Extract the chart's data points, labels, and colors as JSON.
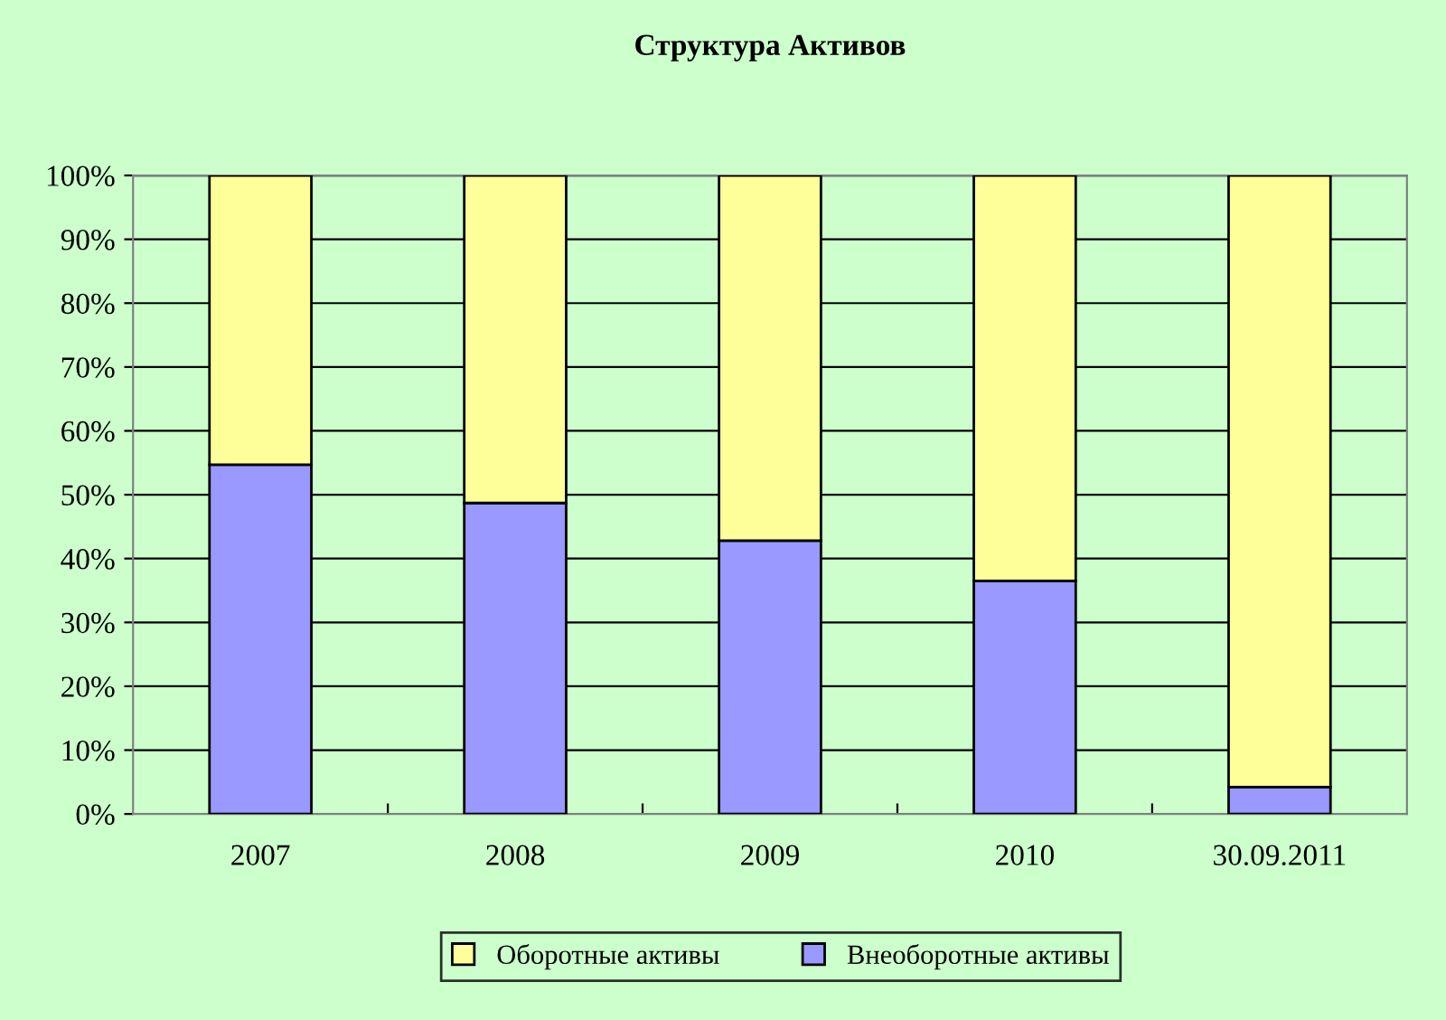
{
  "chart_data": {
    "type": "bar",
    "title": "Структура Активов",
    "categories": [
      "2007",
      "2008",
      "2009",
      "2010",
      "30.09.2011"
    ],
    "stacked": true,
    "series": [
      {
        "name": "Внеоборотные активы",
        "color": "#9999ff",
        "values": [
          54.7,
          48.7,
          42.8,
          36.5,
          4.2
        ]
      },
      {
        "name": "Оборотные активы",
        "color": "#ffff99",
        "values": [
          45.3,
          51.3,
          57.2,
          63.5,
          95.8
        ]
      }
    ],
    "ylim": [
      0,
      100
    ],
    "yticks": [
      {
        "value": 0,
        "label": "0%"
      },
      {
        "value": 10,
        "label": "10%"
      },
      {
        "value": 20,
        "label": "20%"
      },
      {
        "value": 30,
        "label": "30%"
      },
      {
        "value": 40,
        "label": "40%"
      },
      {
        "value": 50,
        "label": "50%"
      },
      {
        "value": 60,
        "label": "60%"
      },
      {
        "value": 70,
        "label": "70%"
      },
      {
        "value": 80,
        "label": "80%"
      },
      {
        "value": 90,
        "label": "90%"
      },
      {
        "value": 100,
        "label": "100%"
      }
    ],
    "grid": "y",
    "legend": "bottom"
  }
}
